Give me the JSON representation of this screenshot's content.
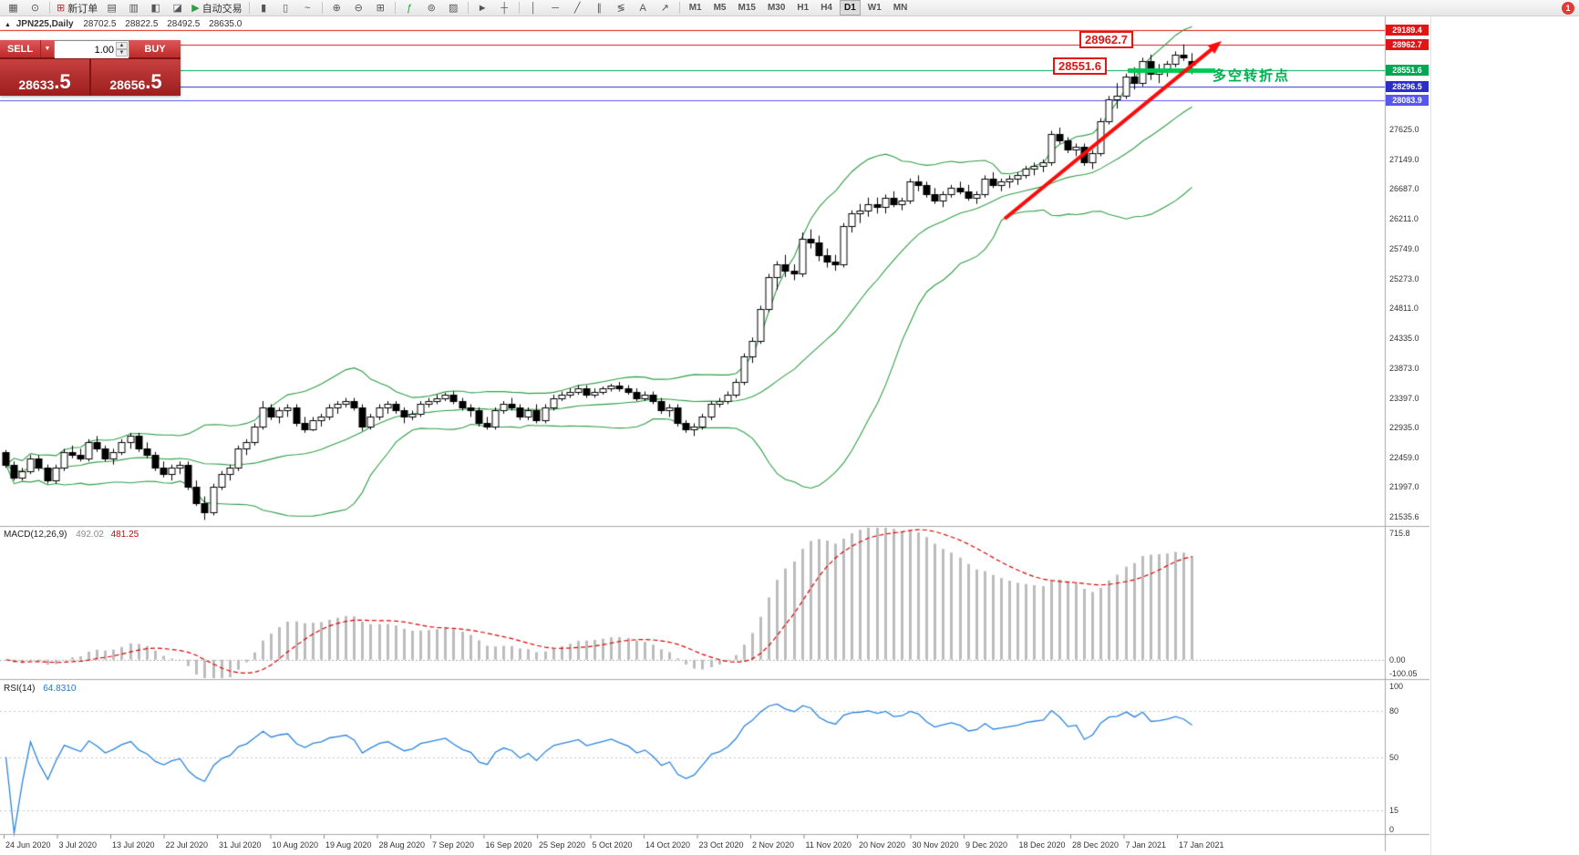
{
  "toolbar": {
    "items": [
      {
        "type": "button",
        "name": "new-chart",
        "glyph": "▦"
      },
      {
        "type": "button",
        "name": "chart-profiles",
        "glyph": "⊙"
      },
      {
        "type": "sep"
      },
      {
        "type": "button",
        "name": "new-order",
        "glyph": "⊞",
        "glyph_color": "#c62828",
        "label": "新订单"
      },
      {
        "type": "button",
        "name": "market-watch",
        "glyph": "▤"
      },
      {
        "type": "button",
        "name": "data-window",
        "glyph": "▥"
      },
      {
        "type": "button",
        "name": "navigator",
        "glyph": "◧"
      },
      {
        "type": "button",
        "name": "terminal",
        "glyph": "◪"
      },
      {
        "type": "button",
        "name": "autotrading",
        "glyph": "▶",
        "glyph_color": "#2e9e44",
        "label": "自动交易"
      },
      {
        "type": "sep"
      },
      {
        "type": "button",
        "name": "bar-chart-mode",
        "glyph": "▮"
      },
      {
        "type": "button",
        "name": "candlestick-mode",
        "glyph": "▯"
      },
      {
        "type": "button",
        "name": "line-chart-mode",
        "glyph": "~"
      },
      {
        "type": "sep"
      },
      {
        "type": "button",
        "name": "zoom-in",
        "glyph": "⊕"
      },
      {
        "type": "button",
        "name": "zoom-out",
        "glyph": "⊖"
      },
      {
        "type": "button",
        "name": "tile-windows",
        "glyph": "⊞"
      },
      {
        "type": "sep"
      },
      {
        "type": "button",
        "name": "indicators-list",
        "glyph": "ƒ",
        "glyph_color": "#2e9e44"
      },
      {
        "type": "button",
        "name": "time-periods",
        "glyph": "⊚"
      },
      {
        "type": "button",
        "name": "templates",
        "glyph": "▨"
      },
      {
        "type": "sep"
      },
      {
        "type": "button",
        "name": "cursor-tool",
        "glyph": "►"
      },
      {
        "type": "button",
        "name": "crosshair-tool",
        "glyph": "┼"
      },
      {
        "type": "sep"
      },
      {
        "type": "button",
        "name": "vertical-line-tool",
        "glyph": "│"
      },
      {
        "type": "button",
        "name": "horizontal-line-tool",
        "glyph": "─"
      },
      {
        "type": "button",
        "name": "trendline-tool",
        "glyph": "╱"
      },
      {
        "type": "button",
        "name": "channel-tool",
        "glyph": "∥"
      },
      {
        "type": "button",
        "name": "fibonacci-tool",
        "glyph": "≶"
      },
      {
        "type": "button",
        "name": "text-tool",
        "glyph": "A"
      },
      {
        "type": "button",
        "name": "arrows-tool",
        "glyph": "↗"
      },
      {
        "type": "sep"
      }
    ],
    "timeframes": [
      "M1",
      "M5",
      "M15",
      "M30",
      "H1",
      "H4",
      "D1",
      "W1",
      "MN"
    ],
    "active_timeframe": "D1",
    "notification_count": "1"
  },
  "chart": {
    "symbol_marker": "▲",
    "title": "JPN225,Daily",
    "open": "28702.5",
    "high": "28822.5",
    "low": "28492.5",
    "close": "28635.0"
  },
  "trade_panel": {
    "sell_label": "SELL",
    "buy_label": "BUY",
    "caret": "▼",
    "volume": "1.00",
    "spin_up": "▲",
    "spin_down": "▼",
    "sell_price_main": "28633",
    "sell_price_frac": ".5",
    "buy_price_main": "28656",
    "buy_price_frac": ".5"
  },
  "annotations": {
    "resistance_label": "28962.7",
    "support_label": "28551.6",
    "turning_point_note": "多空转折点"
  },
  "price_axis": {
    "labels": [
      "27625.0",
      "27149.0",
      "26687.0",
      "26211.0",
      "25749.0",
      "25273.0",
      "24811.0",
      "24335.0",
      "23873.0",
      "23397.0",
      "22935.0",
      "22459.0",
      "21997.0",
      "21535.6"
    ],
    "markers": [
      {
        "text": "29189.4",
        "color": "#e21414"
      },
      {
        "text": "28962.7",
        "color": "#e21414"
      },
      {
        "text": "28551.6",
        "color": "#00a651"
      },
      {
        "text": "28296.5",
        "color": "#2d2dcb"
      },
      {
        "text": "28083.9",
        "color": "#5856f0"
      }
    ]
  },
  "macd_panel": {
    "name": "MACD(12,26,9)",
    "main_value": "492.02",
    "signal_value": "481.25",
    "axis_labels": [
      "715.8",
      "0.00",
      "-100.05"
    ]
  },
  "rsi_panel": {
    "name": "RSI(14)",
    "value": "64.8310",
    "axis_labels": [
      "100",
      "80",
      "50",
      "15",
      "0"
    ],
    "levels": [
      80,
      50,
      15
    ]
  },
  "time_axis": {
    "labels": [
      "24 Jun 2020",
      "3 Jul 2020",
      "13 Jul 2020",
      "22 Jul 2020",
      "31 Jul 2020",
      "10 Aug 2020",
      "19 Aug 2020",
      "28 Aug 2020",
      "7 Sep 2020",
      "16 Sep 2020",
      "25 Sep 2020",
      "5 Oct 2020",
      "14 Oct 2020",
      "23 Oct 2020",
      "2 Nov 2020",
      "11 Nov 2020",
      "20 Nov 2020",
      "30 Nov 2020",
      "9 Dec 2020",
      "18 Dec 2020",
      "28 Dec 2020",
      "7 Jan 2021",
      "17 Jan 2021"
    ]
  },
  "chart_data": {
    "type": "candlestick",
    "symbol": "JPN225",
    "timeframe": "Daily",
    "visible_range_dates": [
      "24 Jun 2020",
      "17 Jan 2021"
    ],
    "y_axis_range": [
      21400,
      29400
    ],
    "current_ohlc": [
      28702.5,
      28822.5,
      28492.5,
      28635.0
    ],
    "ohlc": [
      [
        22550,
        22580,
        22300,
        22350
      ],
      [
        22350,
        22400,
        22100,
        22150
      ],
      [
        22150,
        22300,
        22100,
        22250
      ],
      [
        22250,
        22500,
        22200,
        22450
      ],
      [
        22450,
        22500,
        22250,
        22300
      ],
      [
        22300,
        22350,
        22050,
        22100
      ],
      [
        22100,
        22350,
        22050,
        22300
      ],
      [
        22300,
        22600,
        22250,
        22550
      ],
      [
        22550,
        22650,
        22450,
        22500
      ],
      [
        22500,
        22600,
        22400,
        22450
      ],
      [
        22450,
        22750,
        22400,
        22700
      ],
      [
        22700,
        22800,
        22550,
        22600
      ],
      [
        22600,
        22650,
        22400,
        22450
      ],
      [
        22450,
        22600,
        22350,
        22550
      ],
      [
        22550,
        22750,
        22500,
        22700
      ],
      [
        22700,
        22850,
        22600,
        22800
      ],
      [
        22800,
        22850,
        22550,
        22600
      ],
      [
        22600,
        22700,
        22450,
        22500
      ],
      [
        22500,
        22550,
        22250,
        22300
      ],
      [
        22300,
        22400,
        22150,
        22200
      ],
      [
        22200,
        22350,
        22100,
        22300
      ],
      [
        22300,
        22400,
        22200,
        22350
      ],
      [
        22350,
        22400,
        21950,
        22000
      ],
      [
        22000,
        22100,
        21700,
        21750
      ],
      [
        21750,
        21850,
        21480,
        21600
      ],
      [
        21600,
        22050,
        21550,
        22000
      ],
      [
        22000,
        22250,
        21950,
        22200
      ],
      [
        22200,
        22350,
        22100,
        22300
      ],
      [
        22300,
        22650,
        22250,
        22600
      ],
      [
        22600,
        22750,
        22500,
        22700
      ],
      [
        22700,
        23000,
        22650,
        22950
      ],
      [
        22950,
        23350,
        22900,
        23250
      ],
      [
        23250,
        23300,
        23050,
        23100
      ],
      [
        23100,
        23250,
        23000,
        23200
      ],
      [
        23200,
        23300,
        23100,
        23250
      ],
      [
        23250,
        23300,
        22950,
        23000
      ],
      [
        23000,
        23100,
        22850,
        22900
      ],
      [
        22900,
        23100,
        22880,
        23050
      ],
      [
        23050,
        23150,
        22950,
        23100
      ],
      [
        23100,
        23300,
        23050,
        23250
      ],
      [
        23250,
        23350,
        23150,
        23300
      ],
      [
        23300,
        23400,
        23250,
        23350
      ],
      [
        23350,
        23400,
        23200,
        23250
      ],
      [
        23250,
        23300,
        22880,
        22950
      ],
      [
        22950,
        23150,
        22900,
        23100
      ],
      [
        23100,
        23300,
        23050,
        23250
      ],
      [
        23250,
        23350,
        23150,
        23300
      ],
      [
        23300,
        23350,
        23150,
        23200
      ],
      [
        23200,
        23250,
        23000,
        23100
      ],
      [
        23100,
        23200,
        23050,
        23150
      ],
      [
        23150,
        23350,
        23100,
        23300
      ],
      [
        23300,
        23400,
        23250,
        23350
      ],
      [
        23350,
        23450,
        23300,
        23400
      ],
      [
        23400,
        23480,
        23350,
        23450
      ],
      [
        23450,
        23500,
        23300,
        23350
      ],
      [
        23350,
        23400,
        23200,
        23250
      ],
      [
        23250,
        23300,
        23100,
        23200
      ],
      [
        23200,
        23250,
        22950,
        23000
      ],
      [
        23000,
        23100,
        22900,
        22950
      ],
      [
        22950,
        23250,
        22900,
        23200
      ],
      [
        23200,
        23350,
        23150,
        23300
      ],
      [
        23300,
        23400,
        23200,
        23250
      ],
      [
        23250,
        23300,
        23050,
        23100
      ],
      [
        23100,
        23250,
        23050,
        23200
      ],
      [
        23200,
        23300,
        23000,
        23050
      ],
      [
        23050,
        23300,
        23000,
        23250
      ],
      [
        23250,
        23450,
        23200,
        23400
      ],
      [
        23400,
        23500,
        23350,
        23450
      ],
      [
        23450,
        23550,
        23400,
        23500
      ],
      [
        23500,
        23600,
        23450,
        23550
      ],
      [
        23550,
        23600,
        23400,
        23450
      ],
      [
        23450,
        23550,
        23400,
        23500
      ],
      [
        23500,
        23580,
        23450,
        23550
      ],
      [
        23550,
        23620,
        23500,
        23600
      ],
      [
        23600,
        23650,
        23500,
        23550
      ],
      [
        23550,
        23600,
        23450,
        23500
      ],
      [
        23500,
        23550,
        23350,
        23400
      ],
      [
        23400,
        23500,
        23350,
        23450
      ],
      [
        23450,
        23500,
        23300,
        23350
      ],
      [
        23350,
        23400,
        23150,
        23200
      ],
      [
        23200,
        23300,
        23100,
        23250
      ],
      [
        23250,
        23300,
        22950,
        23000
      ],
      [
        23000,
        23050,
        22850,
        22900
      ],
      [
        22900,
        23000,
        22800,
        22950
      ],
      [
        22950,
        23150,
        22900,
        23100
      ],
      [
        23100,
        23350,
        23050,
        23300
      ],
      [
        23300,
        23400,
        23250,
        23350
      ],
      [
        23350,
        23500,
        23300,
        23450
      ],
      [
        23450,
        23700,
        23400,
        23650
      ],
      [
        23650,
        24100,
        23600,
        24050
      ],
      [
        24050,
        24350,
        23950,
        24300
      ],
      [
        24300,
        24850,
        24250,
        24800
      ],
      [
        24800,
        25350,
        24750,
        25300
      ],
      [
        25300,
        25550,
        25100,
        25500
      ],
      [
        25500,
        25650,
        25300,
        25400
      ],
      [
        25400,
        25500,
        25250,
        25350
      ],
      [
        25350,
        26000,
        25300,
        25900
      ],
      [
        25900,
        26050,
        25750,
        25850
      ],
      [
        25850,
        25950,
        25550,
        25650
      ],
      [
        25650,
        25750,
        25450,
        25550
      ],
      [
        25550,
        25650,
        25400,
        25500
      ],
      [
        25500,
        26150,
        25450,
        26100
      ],
      [
        26100,
        26350,
        26000,
        26300
      ],
      [
        26300,
        26450,
        26150,
        26350
      ],
      [
        26350,
        26550,
        26250,
        26450
      ],
      [
        26450,
        26550,
        26300,
        26400
      ],
      [
        26400,
        26600,
        26300,
        26550
      ],
      [
        26550,
        26650,
        26400,
        26450
      ],
      [
        26450,
        26550,
        26350,
        26500
      ],
      [
        26500,
        26850,
        26450,
        26800
      ],
      [
        26800,
        26900,
        26650,
        26750
      ],
      [
        26750,
        26800,
        26550,
        26600
      ],
      [
        26600,
        26700,
        26450,
        26500
      ],
      [
        26500,
        26650,
        26400,
        26600
      ],
      [
        26600,
        26750,
        26550,
        26700
      ],
      [
        26700,
        26800,
        26600,
        26650
      ],
      [
        26650,
        26750,
        26500,
        26550
      ],
      [
        26550,
        26650,
        26450,
        26600
      ],
      [
        26600,
        26900,
        26550,
        26850
      ],
      [
        26850,
        26950,
        26700,
        26750
      ],
      [
        26750,
        26850,
        26650,
        26800
      ],
      [
        26800,
        26900,
        26700,
        26850
      ],
      [
        26850,
        26950,
        26750,
        26900
      ],
      [
        26900,
        27050,
        26850,
        27000
      ],
      [
        27000,
        27100,
        26900,
        27050
      ],
      [
        27050,
        27150,
        26950,
        27100
      ],
      [
        27100,
        27600,
        27050,
        27550
      ],
      [
        27550,
        27650,
        27400,
        27450
      ],
      [
        27450,
        27500,
        27250,
        27300
      ],
      [
        27300,
        27400,
        27200,
        27350
      ],
      [
        27350,
        27400,
        27050,
        27100
      ],
      [
        27100,
        27300,
        27000,
        27250
      ],
      [
        27250,
        27800,
        27200,
        27750
      ],
      [
        27750,
        28150,
        27700,
        28100
      ],
      [
        28100,
        28350,
        27950,
        28150
      ],
      [
        28150,
        28500,
        28100,
        28450
      ],
      [
        28450,
        28600,
        28250,
        28350
      ],
      [
        28350,
        28750,
        28300,
        28700
      ],
      [
        28700,
        28800,
        28400,
        28500
      ],
      [
        28500,
        28650,
        28350,
        28550
      ],
      [
        28550,
        28700,
        28450,
        28650
      ],
      [
        28650,
        28850,
        28600,
        28800
      ],
      [
        28800,
        28960,
        28700,
        28750
      ],
      [
        28702.5,
        28822.5,
        28492.5,
        28635.0
      ]
    ],
    "indicators": {
      "bollinger_bands": {
        "period": 20,
        "deviation": 2,
        "color": "#2f9e44"
      },
      "macd": {
        "fast": 12,
        "slow": 26,
        "signal": 9,
        "current_main": 492.02,
        "current_signal": 481.25,
        "axis_max": 715.8,
        "axis_min": -100.05,
        "histogram_color": "#bcbcbc",
        "signal_color": "#e00000"
      },
      "rsi": {
        "period": 14,
        "current": 64.831,
        "levels": [
          80,
          50,
          15
        ],
        "color": "#2a84de"
      }
    },
    "horizontal_lines": [
      {
        "price": 29189.4,
        "color": "#e21414"
      },
      {
        "price": 28962.7,
        "color": "#e21414"
      },
      {
        "price": 28551.6,
        "color": "#00a651"
      },
      {
        "price": 28296.5,
        "color": "#2d2dcb"
      },
      {
        "price": 28083.9,
        "color": "#5856f0"
      }
    ],
    "support_segment": {
      "price": 28551.6,
      "color": "#00c853"
    },
    "trend_arrow": {
      "color": "#ff0a0a"
    }
  }
}
